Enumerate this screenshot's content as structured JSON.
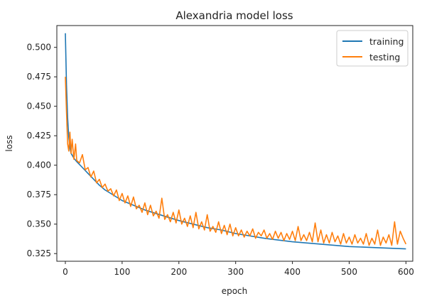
{
  "chart_data": {
    "type": "line",
    "title": "Alexandria model loss",
    "xlabel": "epoch",
    "ylabel": "loss",
    "xlim": [
      -15,
      612
    ],
    "ylim": [
      0.3185,
      0.5185
    ],
    "xticks": [
      0,
      100,
      200,
      300,
      400,
      500,
      600
    ],
    "yticks": [
      0.325,
      0.35,
      0.375,
      0.4,
      0.425,
      0.45,
      0.475,
      0.5
    ],
    "ytick_labels": [
      "0.325",
      "0.350",
      "0.375",
      "0.400",
      "0.425",
      "0.450",
      "0.475",
      "0.500"
    ],
    "grid": false,
    "legend": {
      "placement": "top-right",
      "entries": [
        "training",
        "testing"
      ]
    },
    "series": [
      {
        "name": "training",
        "color": "#1f77b4",
        "x": [
          0,
          2,
          4,
          6,
          8,
          10,
          15,
          20,
          30,
          40,
          50,
          60,
          70,
          80,
          90,
          100,
          120,
          140,
          160,
          180,
          200,
          225,
          250,
          275,
          300,
          350,
          400,
          450,
          500,
          550,
          600
        ],
        "values": [
          0.512,
          0.468,
          0.44,
          0.424,
          0.415,
          0.41,
          0.406,
          0.403,
          0.398,
          0.393,
          0.388,
          0.383,
          0.379,
          0.376,
          0.373,
          0.37,
          0.366,
          0.362,
          0.359,
          0.356,
          0.353,
          0.35,
          0.347,
          0.345,
          0.342,
          0.338,
          0.335,
          0.333,
          0.331,
          0.33,
          0.329
        ]
      },
      {
        "name": "testing",
        "color": "#ff7f0e",
        "x": [
          0,
          2,
          4,
          6,
          8,
          10,
          12,
          15,
          18,
          20,
          25,
          30,
          35,
          40,
          45,
          50,
          55,
          60,
          65,
          70,
          75,
          80,
          85,
          90,
          95,
          100,
          105,
          110,
          115,
          120,
          125,
          130,
          135,
          140,
          145,
          150,
          155,
          160,
          165,
          170,
          175,
          180,
          185,
          190,
          195,
          200,
          205,
          210,
          215,
          220,
          225,
          230,
          235,
          240,
          245,
          250,
          255,
          260,
          265,
          270,
          275,
          280,
          285,
          290,
          295,
          300,
          305,
          310,
          315,
          320,
          325,
          330,
          335,
          340,
          345,
          350,
          355,
          360,
          365,
          370,
          375,
          380,
          385,
          390,
          395,
          400,
          405,
          410,
          415,
          420,
          425,
          430,
          435,
          440,
          445,
          450,
          455,
          460,
          465,
          470,
          475,
          480,
          485,
          490,
          495,
          500,
          505,
          510,
          515,
          520,
          525,
          530,
          535,
          540,
          545,
          550,
          555,
          560,
          565,
          570,
          575,
          580,
          585,
          590,
          595,
          600
        ],
        "values": [
          0.475,
          0.445,
          0.418,
          0.412,
          0.428,
          0.41,
          0.422,
          0.405,
          0.418,
          0.404,
          0.402,
          0.409,
          0.396,
          0.398,
          0.39,
          0.395,
          0.385,
          0.388,
          0.381,
          0.384,
          0.378,
          0.38,
          0.374,
          0.379,
          0.37,
          0.376,
          0.368,
          0.374,
          0.365,
          0.373,
          0.363,
          0.366,
          0.36,
          0.368,
          0.358,
          0.366,
          0.357,
          0.361,
          0.355,
          0.372,
          0.354,
          0.358,
          0.352,
          0.36,
          0.351,
          0.362,
          0.35,
          0.355,
          0.348,
          0.357,
          0.347,
          0.36,
          0.346,
          0.352,
          0.345,
          0.358,
          0.344,
          0.348,
          0.343,
          0.352,
          0.342,
          0.349,
          0.341,
          0.35,
          0.34,
          0.347,
          0.34,
          0.345,
          0.339,
          0.344,
          0.34,
          0.346,
          0.338,
          0.343,
          0.34,
          0.345,
          0.338,
          0.342,
          0.337,
          0.344,
          0.338,
          0.343,
          0.336,
          0.342,
          0.337,
          0.344,
          0.336,
          0.348,
          0.336,
          0.341,
          0.336,
          0.343,
          0.335,
          0.351,
          0.335,
          0.345,
          0.334,
          0.341,
          0.334,
          0.343,
          0.335,
          0.34,
          0.333,
          0.342,
          0.334,
          0.339,
          0.333,
          0.341,
          0.334,
          0.338,
          0.333,
          0.342,
          0.332,
          0.338,
          0.333,
          0.345,
          0.332,
          0.339,
          0.334,
          0.341,
          0.332,
          0.352,
          0.333,
          0.344,
          0.338,
          0.333
        ]
      }
    ]
  }
}
